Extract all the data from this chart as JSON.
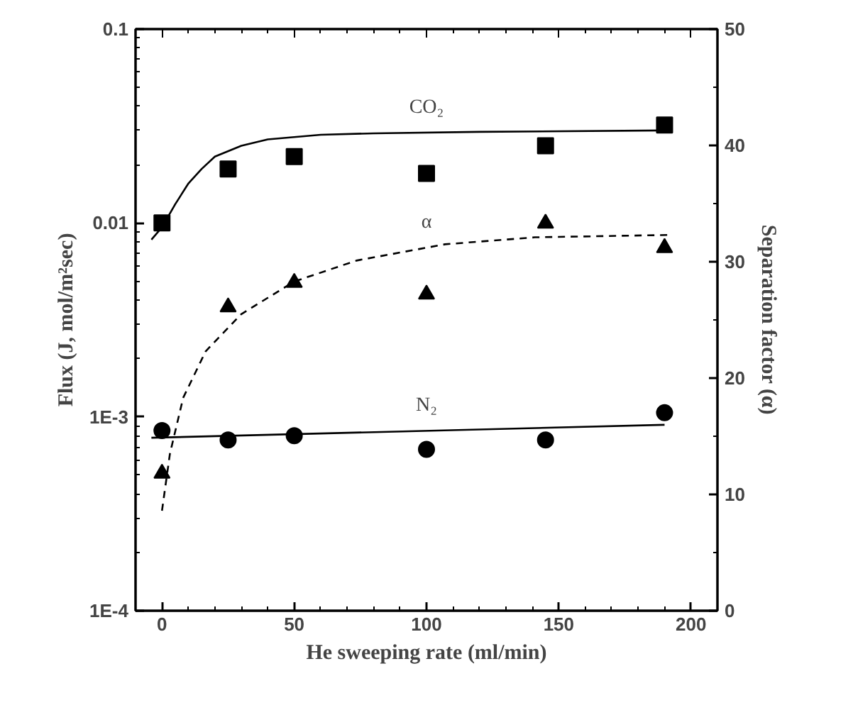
{
  "chart_data": {
    "type": "scatter",
    "xlabel": "He sweeping rate (ml/min)",
    "ylabel": "Flux (J, mol/m²sec)",
    "y2label": "Separation factor (α)",
    "log": "y",
    "grid": false,
    "xlim": [
      -10,
      210
    ],
    "xticks": [
      0,
      50,
      100,
      150,
      200
    ],
    "ylim": [
      0.0001,
      0.1
    ],
    "yticks": [
      {
        "value": 0.0001,
        "label": "1E-4"
      },
      {
        "value": 0.001,
        "label": "1E-3"
      },
      0.01,
      0.1
    ],
    "y2lim": [
      0,
      50
    ],
    "y2ticks": [
      0,
      10,
      20,
      30,
      40,
      50
    ],
    "series": [
      {
        "marker": "square",
        "color": "#000000",
        "x": [
          0,
          25,
          50,
          100,
          145,
          190
        ],
        "values": [
          0.01,
          0.019,
          0.022,
          0.018,
          0.025,
          0.032
        ]
      },
      {
        "marker": "circle",
        "color": "#000000",
        "x": [
          0,
          25,
          50,
          100,
          145,
          190
        ],
        "values": [
          0.00085,
          0.00076,
          0.0008,
          0.00068,
          0.00076,
          0.00105
        ]
      },
      {
        "marker": "triangle",
        "color": "#000000",
        "axis": "y2",
        "x": [
          0,
          25,
          50,
          100,
          145,
          190
        ],
        "values": [
          11.8,
          26.1,
          28.2,
          27.2,
          33.3,
          31.2
        ]
      },
      {
        "type": "line",
        "name": "CO₂",
        "line_style": "solid",
        "color": "#000000",
        "x": [
          -4,
          0,
          5,
          10,
          15,
          20,
          30,
          40,
          60,
          80,
          120,
          190
        ],
        "values": [
          0.0082,
          0.0095,
          0.0125,
          0.016,
          0.019,
          0.022,
          0.025,
          0.027,
          0.0285,
          0.029,
          0.0295,
          0.03
        ]
      },
      {
        "type": "line",
        "name": "N₂",
        "line_style": "solid",
        "color": "#000000",
        "x": [
          -4,
          190
        ],
        "values": [
          0.00078,
          0.00091
        ]
      },
      {
        "type": "line",
        "name": "α",
        "line_style": "dashed",
        "color": "#000000",
        "axis": "y2",
        "x": [
          0,
          3,
          8,
          16.5,
          30,
          50,
          73.5,
          107,
          141,
          191
        ],
        "values": [
          8.6,
          13.5,
          18.3,
          22.3,
          25.5,
          28.3,
          30.1,
          31.5,
          32.1,
          32.3
        ]
      }
    ]
  }
}
